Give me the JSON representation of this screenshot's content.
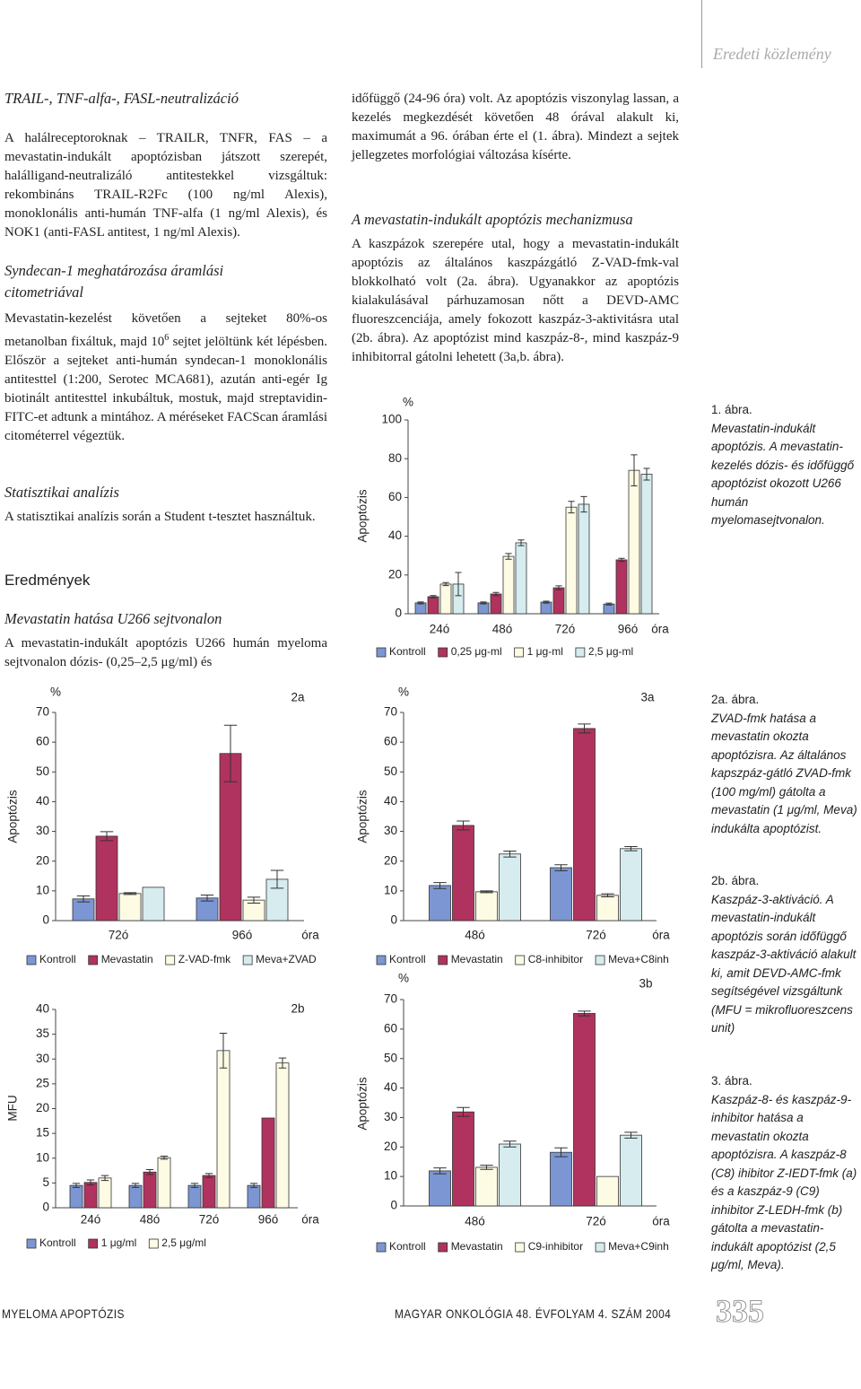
{
  "header": {
    "section": "Eredeti közlemény"
  },
  "left_column": {
    "h1": "TRAIL-, TNF-alfa-, FASL-neutralizáció",
    "p1": "A halálreceptoroknak – TRAILR, TNFR, FAS – a mevastatin-indukált apoptózisban játszott szerepét, halálligand-neutralizáló antitestekkel vizsgáltuk: rekombináns TRAIL-R2Fc (100 ng/ml Alexis), monoklonális anti-humán TNF-alfa (1 ng/ml Alexis), és NOK1 (anti-FASL antitest, 1 ng/ml Alexis).",
    "h2": "Syndecan-1 meghatározása áramlási citometriával",
    "p2": [
      "Mevastatin-kezelést követően a sejteket 80%-os metanolban fixáltuk, majd 10",
      "6",
      " sejtet jelöltünk két lépésben. Először a sejteket anti-humán syndecan-1 monoklonális antitesttel (1:200, Serotec MCA681), azután anti-egér Ig biotinált antitesttel inkubáltuk, mostuk, majd streptavidin-FITC-et adtunk a mintához. A méréseket FACScan áramlási citométerrel végeztük."
    ],
    "h3": "Statisztikai analízis",
    "p3": "A statisztikai analízis során a Student t-tesztet használtuk.",
    "h4": "Eredmények",
    "h5": "Mevastatin hatása U266 sejtvonalon",
    "p4": "A mevastatin-indukált apoptózis U266 humán myeloma sejtvonalon dózis- (0,25–2,5 μg/ml) és"
  },
  "right_column": {
    "p1": "időfüggő (24-96 óra) volt. Az apoptózis viszonylag lassan, a kezelés megkezdését követően 48 órával alakult ki, maximumát a 96. órában érte el (1. ábra). Mindezt a sejtek jellegzetes morfológiai változása kísérte.",
    "h1": "A mevastatin-indukált apoptózis mechanizmusa",
    "p2": "A kaszpázok szerepére utal, hogy a mevastatin-indukált apoptózis az általános kaszpázgátló Z-VAD-fmk-val blokkolható volt (2a. ábra). Ugyanakkor az apoptózis kialakulásával párhuzamosan nőtt a DEVD-AMC fluoreszcenciája, amely fokozott kaszpáz-3-aktivitásra utal (2b. ábra). Az apoptózist mind kaszpáz-8-, mind kaszpáz-9 inhibitorral gátolni lehetett (3a,b. ábra)."
  },
  "captions": [
    {
      "label": "1. ábra.",
      "text": "Mevastatin-indukált apoptózis. A mevastatin-kezelés dózis- és időfüggő apoptózist okozott U266 humán myelomasejtvonalon."
    },
    {
      "label": "2a. ábra.",
      "text": "ZVAD-fmk hatása a mevastatin okozta apoptózisra. Az általános kapszpáz-gátló ZVAD-fmk (100 mg/ml) gátolta a mevastatin (1 μg/ml, Meva) indukálta apoptózist."
    },
    {
      "label": "2b. ábra.",
      "text": "Kaszpáz-3-aktiváció. A mevastatin-indukált apoptózis során időfüggő kaszpáz-3-aktiváció alakult ki, amit DEVD-AMC-fmk segítségével vizsgáltunk (MFU = mikrofluoreszcens unit)"
    },
    {
      "label": "3. ábra.",
      "text": "Kaszpáz-8- és kaszpáz-9-inhibitor hatása a mevastatin okozta apoptózisra. A kaszpáz-8 (C8) ihibitor Z-IEDT-fmk (a) és a kaszpáz-9 (C9) inhibitor Z-LEDH-fmk (b) gátolta a mevastatin-indukált apoptózist (2,5 μg/ml, Meva)."
    }
  ],
  "chart_data": [
    {
      "type": "bar",
      "y_label": "Apoptózis",
      "y_unit": "%",
      "x_unit": "óra",
      "categories": [
        "24ó",
        "48ó",
        "72ó",
        "96ó"
      ],
      "series": [
        {
          "name": "Kontroll",
          "color": "#7b96d2",
          "values": [
            5.6,
            5.6,
            6,
            5
          ],
          "errors": [
            0.5,
            0.5,
            0.5,
            0.5
          ]
        },
        {
          "name": "0,25 μg-ml",
          "color": "#b0325f",
          "values": [
            8.8,
            10.2,
            13.4,
            27.8
          ],
          "errors": [
            0.6,
            0.8,
            1,
            0.8
          ]
        },
        {
          "name": "1 μg-ml",
          "color": "#fdfbe3",
          "values": [
            15.3,
            29.6,
            55,
            74
          ],
          "errors": [
            0.8,
            1.5,
            3,
            8
          ]
        },
        {
          "name": "2,5 μg-ml",
          "color": "#d6ecee",
          "values": [
            15.3,
            36.6,
            56.5,
            72
          ],
          "errors": [
            6,
            1.5,
            4,
            3
          ]
        }
      ],
      "ylim": [
        0,
        100
      ],
      "yticks": [
        0,
        20,
        40,
        60,
        80,
        100
      ]
    },
    {
      "type": "bar",
      "panel": "2a",
      "y_label": "Apoptózis",
      "y_unit": "%",
      "x_unit": "óra",
      "categories": [
        "72ó",
        "96ó"
      ],
      "series": [
        {
          "name": "Kontroll",
          "color": "#7b96d2",
          "values": [
            7.3,
            7.6
          ],
          "errors": [
            1,
            1
          ]
        },
        {
          "name": "Mevastatin",
          "color": "#b0325f",
          "values": [
            28.4,
            56.2
          ],
          "errors": [
            1.5,
            9.5
          ]
        },
        {
          "name": "Z-VAD-fmk",
          "color": "#fdfbe3",
          "values": [
            9.1,
            6.9
          ],
          "errors": [
            0.3,
            1
          ]
        },
        {
          "name": "Meva+ZVAD",
          "color": "#d6ecee",
          "values": [
            11.2,
            13.9
          ],
          "errors": [
            null,
            3
          ]
        }
      ],
      "ylim": [
        0,
        70
      ],
      "yticks": [
        0,
        10,
        20,
        30,
        40,
        50,
        60,
        70
      ]
    },
    {
      "type": "bar",
      "panel": "2b",
      "y_label": "MFU",
      "x_unit": "óra",
      "categories": [
        "24ó",
        "48ó",
        "72ó",
        "96ó"
      ],
      "series": [
        {
          "name": "Kontroll",
          "color": "#7b96d2",
          "values": [
            4.5,
            4.5,
            4.5,
            4.5
          ],
          "errors": [
            0.4,
            0.4,
            0.4,
            0.4
          ]
        },
        {
          "name": "1 μg/ml",
          "color": "#b0325f",
          "values": [
            5.1,
            7.2,
            6.5,
            18.1
          ],
          "errors": [
            0.5,
            0.5,
            0.4,
            null
          ]
        },
        {
          "name": "2,5 μg/ml",
          "color": "#fdfbe3",
          "values": [
            6,
            10.1,
            31.7,
            29.2
          ],
          "errors": [
            0.5,
            0.3,
            3.5,
            1
          ]
        }
      ],
      "ylim": [
        0,
        40
      ],
      "yticks": [
        0,
        5,
        10,
        15,
        20,
        25,
        30,
        35,
        40
      ]
    },
    {
      "type": "bar",
      "panel": "3a",
      "y_label": "Apoptózis",
      "y_unit": "%",
      "x_unit": "óra",
      "categories": [
        "48ó",
        "72ó"
      ],
      "series": [
        {
          "name": "Kontroll",
          "color": "#7b96d2",
          "values": [
            11.8,
            17.8
          ],
          "errors": [
            1,
            1
          ]
        },
        {
          "name": "Mevastatin",
          "color": "#b0325f",
          "values": [
            32,
            64.6
          ],
          "errors": [
            1.5,
            1.5
          ]
        },
        {
          "name": "C8-inhibitor",
          "color": "#fdfbe3",
          "values": [
            9.7,
            8.5
          ],
          "errors": [
            0.3,
            0.5
          ]
        },
        {
          "name": "Meva+C8inh",
          "color": "#d6ecee",
          "values": [
            22.4,
            24.2
          ],
          "errors": [
            1,
            0.7
          ]
        }
      ],
      "ylim": [
        0,
        70
      ],
      "yticks": [
        0,
        10,
        20,
        30,
        40,
        50,
        60,
        70
      ]
    },
    {
      "type": "bar",
      "panel": "3b",
      "y_label": "Apoptózis",
      "y_unit": "%",
      "x_unit": "óra",
      "categories": [
        "48ó",
        "72ó"
      ],
      "series": [
        {
          "name": "Kontroll",
          "color": "#7b96d2",
          "values": [
            11.9,
            18.2
          ],
          "errors": [
            1,
            1.5
          ]
        },
        {
          "name": "Mevastatin",
          "color": "#b0325f",
          "values": [
            31.9,
            65.3
          ],
          "errors": [
            1.5,
            0.8
          ]
        },
        {
          "name": "C9-inhibitor",
          "color": "#fdfbe3",
          "values": [
            13.1,
            10
          ],
          "errors": [
            0.7,
            null
          ]
        },
        {
          "name": "Meva+C9inh",
          "color": "#d6ecee",
          "values": [
            21,
            24
          ],
          "errors": [
            1,
            1
          ]
        }
      ],
      "ylim": [
        0,
        70
      ],
      "yticks": [
        0,
        10,
        20,
        30,
        40,
        50,
        60,
        70
      ]
    }
  ],
  "footer": {
    "running_title": "MYELOMA APOPTÓZIS",
    "journal": "MAGYAR ONKOLÓGIA 48. ÉVFOLYAM 4. SZÁM 2004",
    "page": "335"
  }
}
